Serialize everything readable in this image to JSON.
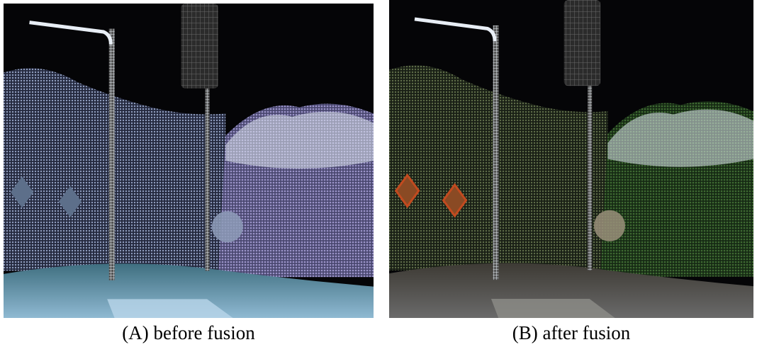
{
  "panels": [
    {
      "caption": "(A) before fusion"
    },
    {
      "caption": "(B) after fusion"
    }
  ]
}
